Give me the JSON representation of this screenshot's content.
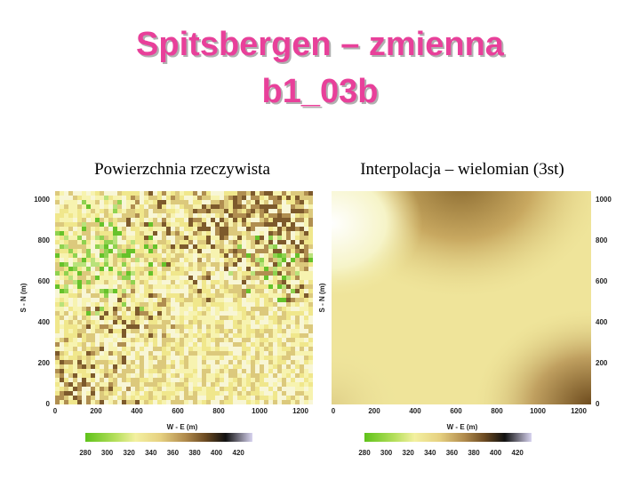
{
  "title_lines": [
    "Spitsbergen – zmienna",
    "b1_03b"
  ],
  "panels": [
    {
      "caption": "Powierzchnia rzeczywista",
      "x_label": "W - E (m)",
      "y_label": "S - N (m)",
      "x_ticks": [
        "0",
        "200",
        "400",
        "600",
        "800",
        "1000",
        "1200"
      ],
      "y_ticks": [
        "0",
        "200",
        "400",
        "600",
        "800",
        "1000"
      ],
      "colorbar_ticks": [
        "280",
        "300",
        "320",
        "340",
        "360",
        "380",
        "400",
        "420"
      ]
    },
    {
      "caption": "Interpolacja – wielomian (3st)",
      "x_label": "W - E (m)",
      "y_label": "S - N (m)",
      "x_ticks": [
        "0",
        "200",
        "400",
        "600",
        "800",
        "1000",
        "1200"
      ],
      "y_ticks": [
        "0",
        "200",
        "400",
        "600",
        "800",
        "1000"
      ],
      "colorbar_ticks": [
        "280",
        "300",
        "320",
        "340",
        "360",
        "380",
        "400",
        "420"
      ]
    }
  ]
}
